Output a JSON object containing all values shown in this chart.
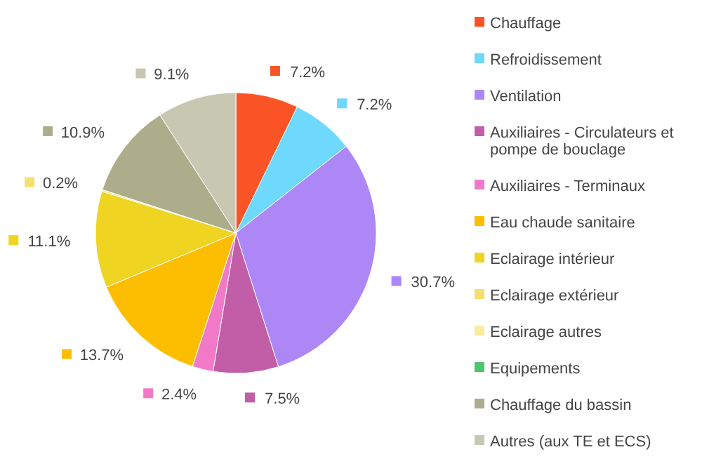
{
  "chart_data": {
    "type": "pie",
    "categories": [
      "Chauffage",
      "Refroidissement",
      "Ventilation",
      "Auxiliaires - Circulateurs et pompe de bouclage",
      "Auxiliaires - Terminaux",
      "Eau chaude sanitaire",
      "Eclairage intérieur",
      "Eclairage extérieur",
      "Eclairage autres",
      "Equipements",
      "Chauffage du bassin",
      "Autres (aux TE et ECS)"
    ],
    "values": [
      7.2,
      7.2,
      30.7,
      7.5,
      2.4,
      13.7,
      11.1,
      0.2,
      0,
      0,
      10.9,
      9.1
    ],
    "colors": [
      "#fa5426",
      "#6ed8fd",
      "#ae87f6",
      "#c25ea8",
      "#f179c8",
      "#fdbe02",
      "#f0d422",
      "#f5df6e",
      "#f9ec9f",
      "#4ec56a",
      "#adac8b",
      "#c8c8b2"
    ],
    "value_labels": [
      "7.2%",
      "7.2%",
      "30.7%",
      "7.5%",
      "2.4%",
      "13.7%",
      "11.1%",
      "0.2%",
      null,
      null,
      "10.9%",
      "9.1%"
    ],
    "legend": "right"
  }
}
